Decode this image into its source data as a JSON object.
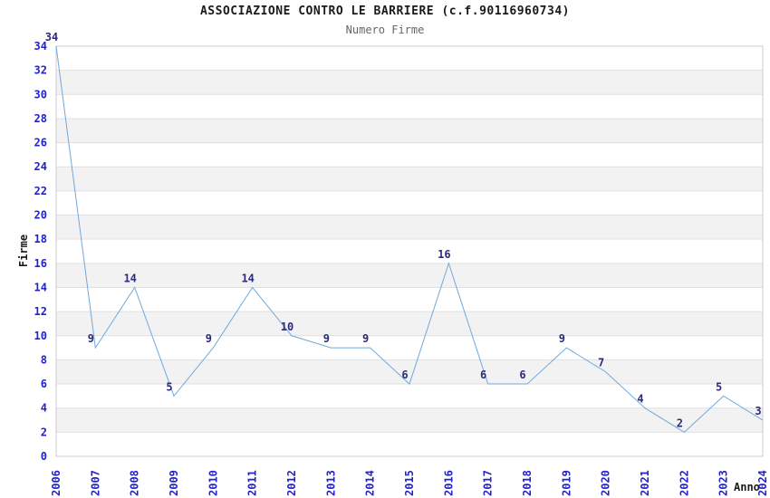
{
  "title": "ASSOCIAZIONE CONTRO LE BARRIERE (c.f.90116960734)",
  "subtitle": "Numero Firme",
  "chart_data": {
    "type": "line",
    "title": "ASSOCIAZIONE CONTRO LE BARRIERE (c.f.90116960734)",
    "subtitle": "Numero Firme",
    "xlabel": "Anno",
    "ylabel": "Firme",
    "categories": [
      "2006",
      "2007",
      "2008",
      "2009",
      "2010",
      "2011",
      "2012",
      "2013",
      "2014",
      "2015",
      "2016",
      "2017",
      "2018",
      "2019",
      "2020",
      "2021",
      "2022",
      "2023",
      "2024"
    ],
    "values": [
      34,
      9,
      14,
      5,
      9,
      14,
      10,
      9,
      9,
      6,
      16,
      6,
      6,
      9,
      7,
      4,
      2,
      5,
      3
    ],
    "ylim": [
      0,
      34
    ],
    "ytick_step": 2,
    "grid": "horizontal-bands",
    "legend": "none",
    "point_labels_shown": true,
    "colors": {
      "line": "#6fa8dc",
      "tick_label": "#2222cc",
      "point_label": "#2b2b7a",
      "band_fill": "#f2f2f2",
      "gridline": "#e0e0e0",
      "border": "#cccccc",
      "title": "#1a1a1a",
      "subtitle": "#666666"
    }
  }
}
